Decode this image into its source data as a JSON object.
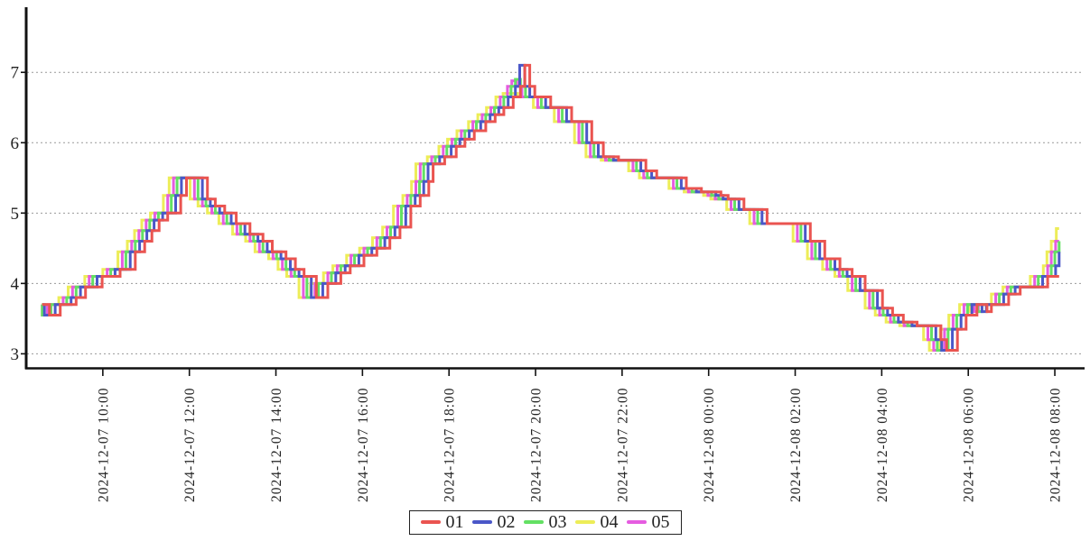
{
  "chart_data": {
    "type": "line",
    "subtype": "step-after",
    "title": "",
    "x_axis": {
      "tick_labels": [
        "2024-12-07 10:00",
        "2024-12-07 12:00",
        "2024-12-07 14:00",
        "2024-12-07 16:00",
        "2024-12-07 18:00",
        "2024-12-07 20:00",
        "2024-12-07 22:00",
        "2024-12-08 00:00",
        "2024-12-08 02:00",
        "2024-12-08 04:00",
        "2024-12-08 06:00",
        "2024-12-08 08:00"
      ],
      "tick_minutes": [
        120,
        240,
        360,
        480,
        600,
        720,
        840,
        960,
        1080,
        1200,
        1320,
        1440
      ],
      "range_minutes": [
        15,
        1480
      ],
      "time_origin_label": "2024-12-07 08:00"
    },
    "y_axis": {
      "tick_labels": [
        "3",
        "4",
        "5",
        "6",
        "7"
      ],
      "tick_values": [
        3,
        4,
        5,
        6,
        7
      ],
      "range": [
        2.8,
        7.9
      ]
    },
    "grid": {
      "horizontal": true,
      "style": "dotted",
      "color": "#999999"
    },
    "legend": {
      "position": "bottom-center",
      "items": [
        "01",
        "02",
        "03",
        "04",
        "05"
      ]
    },
    "series": [
      {
        "name": "01",
        "color": "#ea5450",
        "lead_minutes": 0,
        "peak_cap": 7.1
      },
      {
        "name": "02",
        "color": "#4a57c8",
        "lead_minutes": 7,
        "peak_cap": 7.1
      },
      {
        "name": "03",
        "color": "#63e063",
        "lead_minutes": 13,
        "peak_cap": 6.9
      },
      {
        "name": "04",
        "color": "#eded58",
        "lead_minutes": 24,
        "peak_cap": 6.7
      },
      {
        "name": "05",
        "color": "#e55ce0",
        "lead_minutes": 18,
        "peak_cap": 6.88
      }
    ],
    "draw_order": [
      "04",
      "05",
      "03",
      "02",
      "01"
    ],
    "time_window_minutes": [
      36,
      1446
    ],
    "base_points_minutes_value": [
      [
        36,
        3.7
      ],
      [
        46,
        3.55
      ],
      [
        61,
        3.7
      ],
      [
        83,
        3.8
      ],
      [
        96,
        3.95
      ],
      [
        119,
        4.1
      ],
      [
        144,
        4.2
      ],
      [
        165,
        4.45
      ],
      [
        178,
        4.6
      ],
      [
        188,
        4.75
      ],
      [
        198,
        4.9
      ],
      [
        210,
        5.0
      ],
      [
        228,
        5.25
      ],
      [
        236,
        5.5
      ],
      [
        265,
        5.2
      ],
      [
        276,
        5.1
      ],
      [
        289,
        5.0
      ],
      [
        305,
        4.85
      ],
      [
        324,
        4.7
      ],
      [
        342,
        4.6
      ],
      [
        355,
        4.45
      ],
      [
        374,
        4.35
      ],
      [
        387,
        4.2
      ],
      [
        399,
        4.1
      ],
      [
        416,
        3.8
      ],
      [
        432,
        4.0
      ],
      [
        450,
        4.15
      ],
      [
        463,
        4.25
      ],
      [
        482,
        4.4
      ],
      [
        500,
        4.5
      ],
      [
        518,
        4.65
      ],
      [
        532,
        4.8
      ],
      [
        547,
        5.1
      ],
      [
        560,
        5.25
      ],
      [
        572,
        5.45
      ],
      [
        578,
        5.7
      ],
      [
        594,
        5.8
      ],
      [
        610,
        5.95
      ],
      [
        622,
        6.05
      ],
      [
        635,
        6.17
      ],
      [
        651,
        6.3
      ],
      [
        664,
        6.4
      ],
      [
        676,
        6.5
      ],
      [
        689,
        6.65
      ],
      [
        699,
        6.8
      ],
      [
        705,
        7.1
      ],
      [
        712,
        6.8
      ],
      [
        719,
        6.65
      ],
      [
        741,
        6.5
      ],
      [
        770,
        6.3
      ],
      [
        798,
        6.0
      ],
      [
        814,
        5.8
      ],
      [
        835,
        5.75
      ],
      [
        873,
        5.6
      ],
      [
        888,
        5.5
      ],
      [
        929,
        5.35
      ],
      [
        950,
        5.3
      ],
      [
        977,
        5.25
      ],
      [
        987,
        5.2
      ],
      [
        1009,
        5.05
      ],
      [
        1041,
        4.85
      ],
      [
        1101,
        4.6
      ],
      [
        1121,
        4.35
      ],
      [
        1142,
        4.2
      ],
      [
        1159,
        4.1
      ],
      [
        1177,
        3.9
      ],
      [
        1201,
        3.65
      ],
      [
        1215,
        3.55
      ],
      [
        1230,
        3.45
      ],
      [
        1249,
        3.4
      ],
      [
        1282,
        3.2
      ],
      [
        1290,
        3.05
      ],
      [
        1305,
        3.35
      ],
      [
        1317,
        3.55
      ],
      [
        1332,
        3.7
      ],
      [
        1346,
        3.6
      ],
      [
        1352,
        3.7
      ],
      [
        1376,
        3.85
      ],
      [
        1392,
        3.95
      ],
      [
        1430,
        4.1
      ]
    ],
    "tail_points_minutes_value": [
      [
        1448,
        4.25
      ],
      [
        1453,
        4.45
      ],
      [
        1459,
        4.6
      ],
      [
        1466,
        4.78
      ]
    ]
  }
}
